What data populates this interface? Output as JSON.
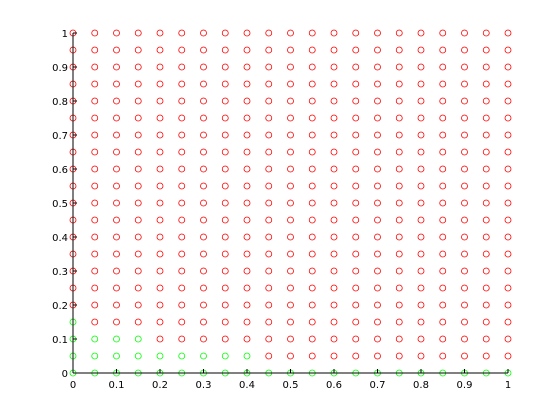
{
  "chart_data": {
    "type": "scatter",
    "title": "",
    "xlabel": "",
    "ylabel": "",
    "xlim": [
      0,
      1
    ],
    "ylim": [
      0,
      1
    ],
    "grid": false,
    "legend": "none",
    "xticks": [
      0,
      0.1,
      0.2,
      0.3,
      0.4,
      0.5,
      0.6,
      0.7,
      0.8,
      0.9,
      1
    ],
    "yticks": [
      0,
      0.1,
      0.2,
      0.3,
      0.4,
      0.5,
      0.6,
      0.7,
      0.8,
      0.9,
      1
    ],
    "xtick_labels": [
      "0",
      "0.1",
      "0.2",
      "0.3",
      "0.4",
      "0.5",
      "0.6",
      "0.7",
      "0.8",
      "0.9",
      "1"
    ],
    "ytick_labels": [
      "0",
      "0.1",
      "0.2",
      "0.3",
      "0.4",
      "0.5",
      "0.6",
      "0.7",
      "0.8",
      "0.9",
      "1"
    ],
    "marker": "open-circle",
    "grid_step": 0.05,
    "series": [
      {
        "color": "#00ff00",
        "points": [
          [
            0,
            0
          ],
          [
            0.05,
            0
          ],
          [
            0.1,
            0
          ],
          [
            0.15,
            0
          ],
          [
            0.2,
            0
          ],
          [
            0.25,
            0
          ],
          [
            0.3,
            0
          ],
          [
            0.35,
            0
          ],
          [
            0.4,
            0
          ],
          [
            0.45,
            0
          ],
          [
            0.5,
            0
          ],
          [
            0.55,
            0
          ],
          [
            0.6,
            0
          ],
          [
            0.65,
            0
          ],
          [
            0.7,
            0
          ],
          [
            0.75,
            0
          ],
          [
            0.8,
            0
          ],
          [
            0.85,
            0
          ],
          [
            0.9,
            0
          ],
          [
            0.95,
            0
          ],
          [
            1,
            0
          ],
          [
            0,
            0.05
          ],
          [
            0.05,
            0.05
          ],
          [
            0.1,
            0.05
          ],
          [
            0.15,
            0.05
          ],
          [
            0.2,
            0.05
          ],
          [
            0.25,
            0.05
          ],
          [
            0.3,
            0.05
          ],
          [
            0.35,
            0.05
          ],
          [
            0.4,
            0.05
          ],
          [
            0,
            0.1
          ],
          [
            0.05,
            0.1
          ],
          [
            0.1,
            0.1
          ],
          [
            0.15,
            0.1
          ],
          [
            0,
            0.15
          ]
        ]
      },
      {
        "color": "#ff0000",
        "points": [
          [
            0.45,
            0.05
          ],
          [
            0.5,
            0.05
          ],
          [
            0.55,
            0.05
          ],
          [
            0.6,
            0.05
          ],
          [
            0.65,
            0.05
          ],
          [
            0.7,
            0.05
          ],
          [
            0.75,
            0.05
          ],
          [
            0.8,
            0.05
          ],
          [
            0.85,
            0.05
          ],
          [
            0.9,
            0.05
          ],
          [
            0.95,
            0.05
          ],
          [
            1,
            0.05
          ],
          [
            0.2,
            0.1
          ],
          [
            0.25,
            0.1
          ],
          [
            0.3,
            0.1
          ],
          [
            0.35,
            0.1
          ],
          [
            0.4,
            0.1
          ],
          [
            0.45,
            0.1
          ],
          [
            0.5,
            0.1
          ],
          [
            0.55,
            0.1
          ],
          [
            0.6,
            0.1
          ],
          [
            0.65,
            0.1
          ],
          [
            0.7,
            0.1
          ],
          [
            0.75,
            0.1
          ],
          [
            0.8,
            0.1
          ],
          [
            0.85,
            0.1
          ],
          [
            0.9,
            0.1
          ],
          [
            0.95,
            0.1
          ],
          [
            1,
            0.1
          ],
          [
            0.05,
            0.15
          ],
          [
            0.1,
            0.15
          ],
          [
            0.15,
            0.15
          ],
          [
            0.2,
            0.15
          ],
          [
            0.25,
            0.15
          ],
          [
            0.3,
            0.15
          ],
          [
            0.35,
            0.15
          ],
          [
            0.4,
            0.15
          ],
          [
            0.45,
            0.15
          ],
          [
            0.5,
            0.15
          ],
          [
            0.55,
            0.15
          ],
          [
            0.6,
            0.15
          ],
          [
            0.65,
            0.15
          ],
          [
            0.7,
            0.15
          ],
          [
            0.75,
            0.15
          ],
          [
            0.8,
            0.15
          ],
          [
            0.85,
            0.15
          ],
          [
            0.9,
            0.15
          ],
          [
            0.95,
            0.15
          ],
          [
            1,
            0.15
          ]
        ],
        "fill_region": {
          "y_from": 0.2,
          "y_to": 1,
          "x_from": 0,
          "x_to": 1
        }
      }
    ]
  }
}
